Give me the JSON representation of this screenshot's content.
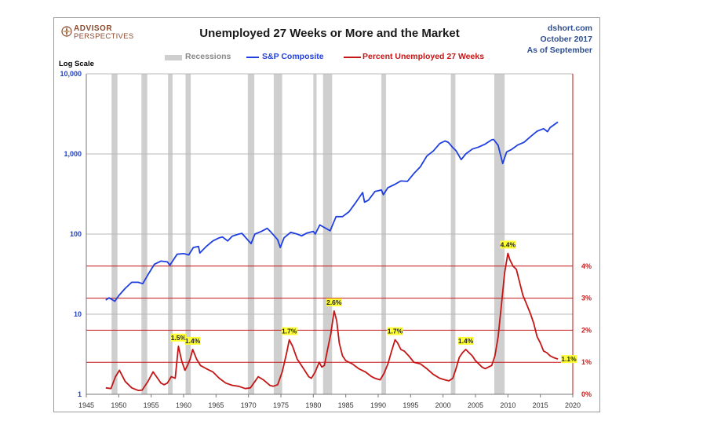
{
  "header": {
    "logo_line1": "ADVISOR",
    "logo_line2": "PERSPECTIVES",
    "title": "Unemployed 27 Weeks or More and the Market",
    "source_lines": [
      "dshort.com",
      "October 2017",
      "As of September"
    ]
  },
  "legend": {
    "recessions": "Recessions",
    "sp": "S&P Composite",
    "unemp": "Percent Unemployed 27 Weeks"
  },
  "colors": {
    "sp": "#1f3fe0",
    "unemp": "#c41616",
    "recession": "#cfcfcf",
    "gridline_right": "#c41616",
    "gridline_left": "#b8b8b8"
  },
  "chart_data": {
    "type": "line",
    "left_axis": {
      "label": "Log Scale",
      "scale": "log",
      "range": [
        1,
        10000
      ],
      "ticks": [
        {
          "value": 10000,
          "label": "10,000"
        },
        {
          "value": 1000,
          "label": "1,000"
        },
        {
          "value": 100,
          "label": "100"
        },
        {
          "value": 10,
          "label": "10"
        },
        {
          "value": 1,
          "label": "1"
        }
      ]
    },
    "right_axis": {
      "range": [
        0,
        10
      ],
      "ticks": [
        {
          "value": 4,
          "label": "4%"
        },
        {
          "value": 3,
          "label": "3%"
        },
        {
          "value": 2,
          "label": "2%"
        },
        {
          "value": 1,
          "label": "1%"
        },
        {
          "value": 0,
          "label": "0%"
        }
      ]
    },
    "x_axis": {
      "range": [
        1945,
        2020
      ],
      "ticks": [
        1945,
        1950,
        1955,
        1960,
        1965,
        1970,
        1975,
        1980,
        1985,
        1990,
        1995,
        2000,
        2005,
        2010,
        2015,
        2020
      ]
    },
    "recessions": [
      [
        1948.9,
        1949.8
      ],
      [
        1953.5,
        1954.4
      ],
      [
        1957.6,
        1958.3
      ],
      [
        1960.3,
        1961.1
      ],
      [
        1969.9,
        1970.9
      ],
      [
        1973.9,
        1975.2
      ],
      [
        1980.0,
        1980.5
      ],
      [
        1981.5,
        1982.9
      ],
      [
        1990.5,
        1991.2
      ],
      [
        2001.2,
        2001.9
      ],
      [
        2007.9,
        2009.5
      ]
    ],
    "series": [
      {
        "name": "S&P Composite",
        "axis": "left",
        "x": [
          1948.0,
          1948.5,
          1949.4,
          1950.0,
          1951.0,
          1952.0,
          1953.0,
          1953.7,
          1954.5,
          1955.5,
          1956.5,
          1957.5,
          1957.9,
          1959.0,
          1960.0,
          1960.8,
          1961.5,
          1962.3,
          1962.5,
          1963.5,
          1964.5,
          1965.5,
          1966.0,
          1966.8,
          1967.5,
          1968.5,
          1969.0,
          1970.4,
          1971.0,
          1972.0,
          1972.9,
          1973.5,
          1974.5,
          1974.9,
          1975.5,
          1976.5,
          1977.5,
          1978.2,
          1979.0,
          1980.0,
          1980.3,
          1981.0,
          1982.6,
          1983.5,
          1984.5,
          1985.5,
          1986.5,
          1987.6,
          1987.9,
          1988.5,
          1989.5,
          1990.5,
          1990.8,
          1991.5,
          1992.5,
          1993.5,
          1994.5,
          1995.5,
          1996.5,
          1997.5,
          1998.5,
          1999.5,
          2000.3,
          2000.8,
          2001.5,
          2002.0,
          2002.8,
          2003.5,
          2004.5,
          2005.5,
          2006.5,
          2007.5,
          2007.8,
          2008.5,
          2009.2,
          2009.8,
          2010.5,
          2011.5,
          2012.5,
          2013.5,
          2014.5,
          2015.5,
          2016.1,
          2016.5,
          2017.0,
          2017.7
        ],
        "y": [
          15,
          16,
          14.5,
          17,
          21,
          25,
          25,
          24,
          31,
          42,
          46,
          45,
          41,
          56,
          57,
          55,
          68,
          70,
          58,
          70,
          82,
          90,
          92,
          82,
          94,
          100,
          102,
          76,
          100,
          108,
          118,
          105,
          85,
          68,
          90,
          105,
          100,
          95,
          103,
          108,
          100,
          130,
          110,
          165,
          165,
          190,
          245,
          330,
          250,
          265,
          340,
          355,
          310,
          380,
          415,
          460,
          455,
          570,
          690,
          940,
          1090,
          1350,
          1450,
          1400,
          1200,
          1100,
          850,
          1000,
          1150,
          1220,
          1330,
          1500,
          1520,
          1280,
          760,
          1060,
          1130,
          1290,
          1400,
          1650,
          1920,
          2070,
          1900,
          2130,
          2280,
          2500
        ]
      },
      {
        "name": "Percent Unemployed 27 Weeks",
        "axis": "right",
        "x": [
          1948.0,
          1948.8,
          1949.5,
          1950.1,
          1951.0,
          1952.0,
          1953.0,
          1953.6,
          1954.5,
          1955.3,
          1956.0,
          1956.5,
          1957.0,
          1957.5,
          1958.1,
          1958.7,
          1959.2,
          1959.7,
          1960.2,
          1960.6,
          1961.0,
          1961.4,
          1962.0,
          1962.6,
          1963.5,
          1964.5,
          1965.5,
          1966.5,
          1967.5,
          1968.5,
          1969.5,
          1970.3,
          1971.0,
          1971.5,
          1972.3,
          1973.3,
          1973.8,
          1974.5,
          1975.2,
          1975.9,
          1976.3,
          1976.8,
          1977.5,
          1978.5,
          1979.3,
          1979.7,
          1980.3,
          1980.9,
          1981.3,
          1981.7,
          1982.2,
          1982.7,
          1983.2,
          1983.6,
          1984.0,
          1984.5,
          1985.0,
          1986.0,
          1987.0,
          1988.0,
          1989.0,
          1989.5,
          1990.3,
          1990.9,
          1991.5,
          1992.0,
          1992.6,
          1993.0,
          1993.5,
          1994.0,
          1994.7,
          1995.5,
          1996.5,
          1997.5,
          1998.5,
          1999.5,
          2000.3,
          2000.9,
          2001.5,
          2002.0,
          2002.5,
          2003.0,
          2003.5,
          2004.0,
          2004.5,
          2005.0,
          2005.5,
          2006.0,
          2006.5,
          2007.0,
          2007.5,
          2008.0,
          2008.5,
          2009.0,
          2009.5,
          2010.0,
          2010.3,
          2010.8,
          2011.3,
          2011.8,
          2012.3,
          2012.8,
          2013.5,
          2014.0,
          2014.5,
          2015.0,
          2015.5,
          2016.0,
          2016.5,
          2017.0,
          2017.7
        ],
        "y": [
          0.2,
          0.18,
          0.55,
          0.75,
          0.4,
          0.2,
          0.12,
          0.13,
          0.4,
          0.7,
          0.5,
          0.35,
          0.3,
          0.35,
          0.55,
          0.5,
          1.5,
          1.05,
          0.75,
          0.9,
          1.1,
          1.4,
          1.1,
          0.9,
          0.8,
          0.7,
          0.5,
          0.35,
          0.28,
          0.25,
          0.18,
          0.2,
          0.4,
          0.55,
          0.45,
          0.28,
          0.25,
          0.3,
          0.7,
          1.3,
          1.7,
          1.5,
          1.1,
          0.8,
          0.55,
          0.5,
          0.7,
          1.0,
          0.85,
          0.9,
          1.4,
          1.9,
          2.6,
          2.3,
          1.6,
          1.2,
          1.05,
          0.95,
          0.8,
          0.7,
          0.55,
          0.5,
          0.45,
          0.65,
          0.95,
          1.3,
          1.7,
          1.6,
          1.4,
          1.35,
          1.2,
          1.0,
          0.95,
          0.8,
          0.62,
          0.5,
          0.45,
          0.42,
          0.5,
          0.8,
          1.15,
          1.3,
          1.4,
          1.3,
          1.2,
          1.05,
          0.95,
          0.85,
          0.8,
          0.85,
          0.9,
          1.2,
          1.8,
          2.8,
          3.8,
          4.4,
          4.2,
          4.0,
          3.9,
          3.5,
          3.1,
          2.85,
          2.5,
          2.2,
          1.8,
          1.6,
          1.35,
          1.3,
          1.2,
          1.15,
          1.1
        ]
      }
    ],
    "annotations": [
      {
        "x": 1959.2,
        "y": 1.5,
        "label": "1.5%"
      },
      {
        "x": 1961.4,
        "y": 1.4,
        "label": "1.4%"
      },
      {
        "x": 1976.3,
        "y": 1.7,
        "label": "1.7%"
      },
      {
        "x": 1983.2,
        "y": 2.6,
        "label": "2.6%"
      },
      {
        "x": 1992.6,
        "y": 1.7,
        "label": "1.7%"
      },
      {
        "x": 2003.5,
        "y": 1.4,
        "label": "1.4%"
      },
      {
        "x": 2010.0,
        "y": 4.4,
        "label": "4.4%"
      },
      {
        "x": 2017.7,
        "y": 1.1,
        "label": "1.1%"
      }
    ]
  }
}
